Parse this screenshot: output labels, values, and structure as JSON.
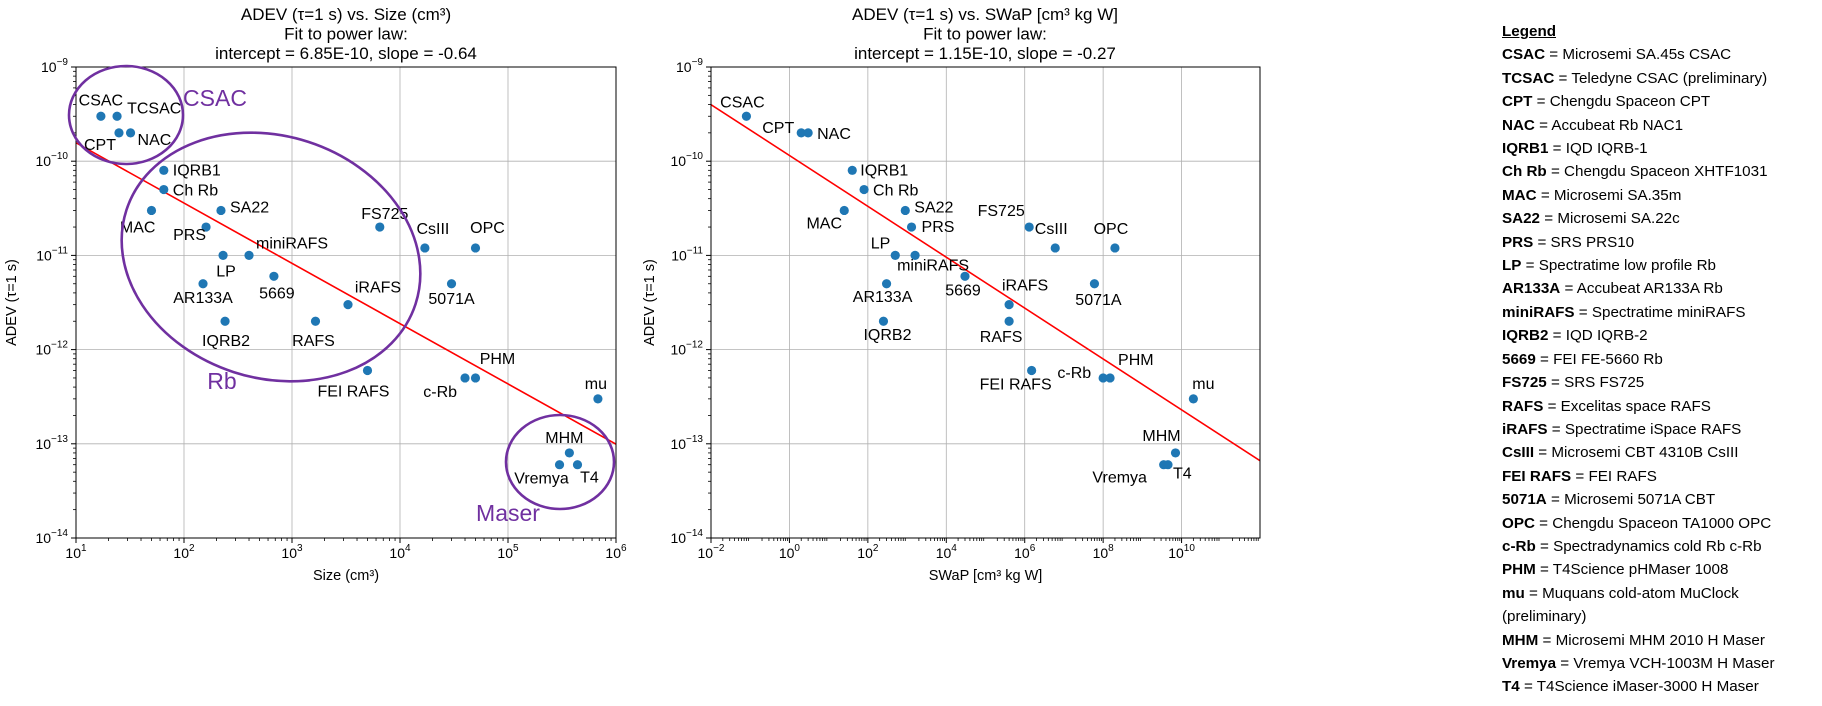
{
  "legend": {
    "title": "Legend",
    "entries": [
      {
        "abbr": "CSAC",
        "desc": "Microsemi SA.45s CSAC"
      },
      {
        "abbr": "TCSAC",
        "desc": "Teledyne CSAC (preliminary)"
      },
      {
        "abbr": "CPT",
        "desc": "Chengdu Spaceon CPT"
      },
      {
        "abbr": "NAC",
        "desc": "Accubeat Rb NAC1"
      },
      {
        "abbr": "IQRB1",
        "desc": "IQD IQRB-1"
      },
      {
        "abbr": "Ch Rb",
        "desc": "Chengdu Spaceon XHTF1031"
      },
      {
        "abbr": "MAC",
        "desc": "Microsemi SA.35m"
      },
      {
        "abbr": "SA22",
        "desc": "Microsemi SA.22c"
      },
      {
        "abbr": "PRS",
        "desc": "SRS PRS10"
      },
      {
        "abbr": "LP",
        "desc": "Spectratime low profile Rb"
      },
      {
        "abbr": "AR133A",
        "desc": "Accubeat AR133A Rb"
      },
      {
        "abbr": "miniRAFS",
        "desc": "Spectratime miniRAFS"
      },
      {
        "abbr": "IQRB2",
        "desc": "IQD IQRB-2"
      },
      {
        "abbr": "5669",
        "desc": "FEI FE-5660 Rb"
      },
      {
        "abbr": "FS725",
        "desc": "SRS FS725"
      },
      {
        "abbr": "RAFS",
        "desc": "Excelitas space RAFS"
      },
      {
        "abbr": "iRAFS",
        "desc": "Spectratime iSpace RAFS"
      },
      {
        "abbr": "CsIII",
        "desc": "Microsemi CBT 4310B CsIII"
      },
      {
        "abbr": "FEI RAFS",
        "desc": "FEI RAFS"
      },
      {
        "abbr": "5071A",
        "desc": "Microsemi 5071A CBT"
      },
      {
        "abbr": "OPC",
        "desc": "Chengdu Spaceon TA1000 OPC"
      },
      {
        "abbr": "c-Rb",
        "desc": "Spectradynamics cold Rb c-Rb"
      },
      {
        "abbr": "PHM",
        "desc": "T4Science pHMaser 1008"
      },
      {
        "abbr": "mu",
        "desc": "Muquans cold-atom MuClock (preliminary)"
      },
      {
        "abbr": "MHM",
        "desc": "Microsemi MHM 2010 H Maser"
      },
      {
        "abbr": "Vremya",
        "desc": "Vremya VCH-1003M H Maser"
      },
      {
        "abbr": "T4",
        "desc": "T4Science iMaser-3000 H Maser"
      }
    ]
  },
  "colors": {
    "points": "#1f77b4",
    "fit_line": "#ff0000",
    "groups": "#7030a0",
    "grid": "#b0b0b0"
  },
  "chart_data": [
    {
      "type": "scatter",
      "title_lines": [
        "ADEV (τ=1 s) vs. Size (cm³)",
        "Fit to power law:",
        "intercept = 6.85E-10, slope = -0.64"
      ],
      "xlabel": "Size (cm³)",
      "ylabel": "ADEV (τ=1 s)",
      "x_scale": "log",
      "y_scale": "log",
      "xlim": [
        10,
        1000000
      ],
      "ylim": [
        1e-14,
        1e-09
      ],
      "x_ticks": [
        {
          "v": 10,
          "b": "10",
          "e": "1"
        },
        {
          "v": 100,
          "b": "10",
          "e": "2"
        },
        {
          "v": 1000,
          "b": "10",
          "e": "3"
        },
        {
          "v": 10000,
          "b": "10",
          "e": "4"
        },
        {
          "v": 100000,
          "b": "10",
          "e": "5"
        },
        {
          "v": 1000000,
          "b": "10",
          "e": "6"
        }
      ],
      "y_ticks": [
        {
          "v": 1e-14,
          "b": "10",
          "e": "−14"
        },
        {
          "v": 1e-13,
          "b": "10",
          "e": "−13"
        },
        {
          "v": 1e-12,
          "b": "10",
          "e": "−12"
        },
        {
          "v": 1e-11,
          "b": "10",
          "e": "−11"
        },
        {
          "v": 1e-10,
          "b": "10",
          "e": "−10"
        },
        {
          "v": 1e-09,
          "b": "10",
          "e": "−9"
        }
      ],
      "grid": true,
      "fit": {
        "intercept": 6.85e-10,
        "slope": -0.64
      },
      "points": [
        {
          "label": "CSAC",
          "x": 17,
          "y": 3e-10
        },
        {
          "label": "TCSAC",
          "x": 24,
          "y": 3e-10
        },
        {
          "label": "CPT",
          "x": 25,
          "y": 2e-10
        },
        {
          "label": "NAC",
          "x": 32,
          "y": 2e-10
        },
        {
          "label": "IQRB1",
          "x": 65,
          "y": 8e-11
        },
        {
          "label": "Ch Rb",
          "x": 65,
          "y": 5e-11
        },
        {
          "label": "MAC",
          "x": 50,
          "y": 3e-11
        },
        {
          "label": "SA22",
          "x": 220,
          "y": 3e-11
        },
        {
          "label": "PRS",
          "x": 160,
          "y": 2e-11
        },
        {
          "label": "LP",
          "x": 230,
          "y": 1e-11
        },
        {
          "label": "miniRAFS",
          "x": 400,
          "y": 1e-11
        },
        {
          "label": "AR133A",
          "x": 150,
          "y": 5e-12
        },
        {
          "label": "5669",
          "x": 680,
          "y": 6e-12
        },
        {
          "label": "IQRB2",
          "x": 240,
          "y": 2e-12
        },
        {
          "label": "FS725",
          "x": 6500,
          "y": 2e-11
        },
        {
          "label": "CsIII",
          "x": 17000,
          "y": 1.2e-11
        },
        {
          "label": "OPC",
          "x": 50000,
          "y": 1.2e-11
        },
        {
          "label": "5071A",
          "x": 30000,
          "y": 5e-12
        },
        {
          "label": "iRAFS",
          "x": 3300,
          "y": 3e-12
        },
        {
          "label": "RAFS",
          "x": 1650,
          "y": 2e-12
        },
        {
          "label": "FEI RAFS",
          "x": 5000,
          "y": 6e-13
        },
        {
          "label": "c-Rb",
          "x": 40000,
          "y": 5e-13
        },
        {
          "label": "PHM",
          "x": 50000,
          "y": 5e-13
        },
        {
          "label": "mu",
          "x": 680000,
          "y": 3e-13
        },
        {
          "label": "MHM",
          "x": 370000,
          "y": 8e-14
        },
        {
          "label": "Vremya",
          "x": 300000,
          "y": 6e-14
        },
        {
          "label": "T4",
          "x": 440000,
          "y": 6e-14
        }
      ],
      "groups": [
        {
          "label": "CSAC"
        },
        {
          "label": "Rb"
        },
        {
          "label": "Maser"
        }
      ]
    },
    {
      "type": "scatter",
      "title_lines": [
        "ADEV (τ=1 s) vs. SWaP [cm³ kg W]",
        "Fit to power law:",
        "intercept = 1.15E-10, slope = -0.27"
      ],
      "xlabel": "SWaP [cm³ kg W]",
      "ylabel": "ADEV (τ=1 s)",
      "x_scale": "log",
      "y_scale": "log",
      "xlim": [
        0.01,
        1000000000000.0
      ],
      "ylim": [
        1e-14,
        1e-09
      ],
      "x_ticks": [
        {
          "v": 0.01,
          "b": "10",
          "e": "−2"
        },
        {
          "v": 1,
          "b": "10",
          "e": "0"
        },
        {
          "v": 100,
          "b": "10",
          "e": "2"
        },
        {
          "v": 10000,
          "b": "10",
          "e": "4"
        },
        {
          "v": 1000000,
          "b": "10",
          "e": "6"
        },
        {
          "v": 100000000,
          "b": "10",
          "e": "8"
        },
        {
          "v": 10000000000,
          "b": "10",
          "e": "10"
        }
      ],
      "y_ticks": [
        {
          "v": 1e-14,
          "b": "10",
          "e": "−14"
        },
        {
          "v": 1e-13,
          "b": "10",
          "e": "−13"
        },
        {
          "v": 1e-12,
          "b": "10",
          "e": "−12"
        },
        {
          "v": 1e-11,
          "b": "10",
          "e": "−11"
        },
        {
          "v": 1e-10,
          "b": "10",
          "e": "−10"
        },
        {
          "v": 1e-09,
          "b": "10",
          "e": "−9"
        }
      ],
      "grid": true,
      "fit": {
        "intercept": 1.15e-10,
        "slope": -0.27
      },
      "points": [
        {
          "label": "CSAC",
          "x": 0.08,
          "y": 3e-10
        },
        {
          "label": "CPT",
          "x": 2,
          "y": 2e-10
        },
        {
          "label": "NAC",
          "x": 3,
          "y": 2e-10
        },
        {
          "label": "IQRB1",
          "x": 40,
          "y": 8e-11
        },
        {
          "label": "Ch Rb",
          "x": 80,
          "y": 5e-11
        },
        {
          "label": "MAC",
          "x": 25,
          "y": 3e-11
        },
        {
          "label": "SA22",
          "x": 900,
          "y": 3e-11
        },
        {
          "label": "PRS",
          "x": 1300,
          "y": 2e-11
        },
        {
          "label": "LP",
          "x": 500,
          "y": 1e-11
        },
        {
          "label": "miniRAFS",
          "x": 1600,
          "y": 1e-11
        },
        {
          "label": "AR133A",
          "x": 300,
          "y": 5e-12
        },
        {
          "label": "5669",
          "x": 30000,
          "y": 6e-12
        },
        {
          "label": "IQRB2",
          "x": 250,
          "y": 2e-12
        },
        {
          "label": "FS725",
          "x": 1300000,
          "y": 2e-11
        },
        {
          "label": "CsIII",
          "x": 6000000,
          "y": 1.2e-11
        },
        {
          "label": "OPC",
          "x": 200000000,
          "y": 1.2e-11
        },
        {
          "label": "5071A",
          "x": 60000000,
          "y": 5e-12
        },
        {
          "label": "iRAFS",
          "x": 400000,
          "y": 3e-12
        },
        {
          "label": "RAFS",
          "x": 400000,
          "y": 2e-12
        },
        {
          "label": "FEI RAFS",
          "x": 1500000,
          "y": 6e-13
        },
        {
          "label": "c-Rb",
          "x": 100000000,
          "y": 5e-13
        },
        {
          "label": "PHM",
          "x": 150000000,
          "y": 5e-13
        },
        {
          "label": "mu",
          "x": 20000000000,
          "y": 3e-13
        },
        {
          "label": "MHM",
          "x": 7000000000,
          "y": 8e-14
        },
        {
          "label": "Vremya",
          "x": 3500000000,
          "y": 6e-14
        },
        {
          "label": "T4",
          "x": 4500000000,
          "y": 6e-14
        }
      ]
    }
  ]
}
